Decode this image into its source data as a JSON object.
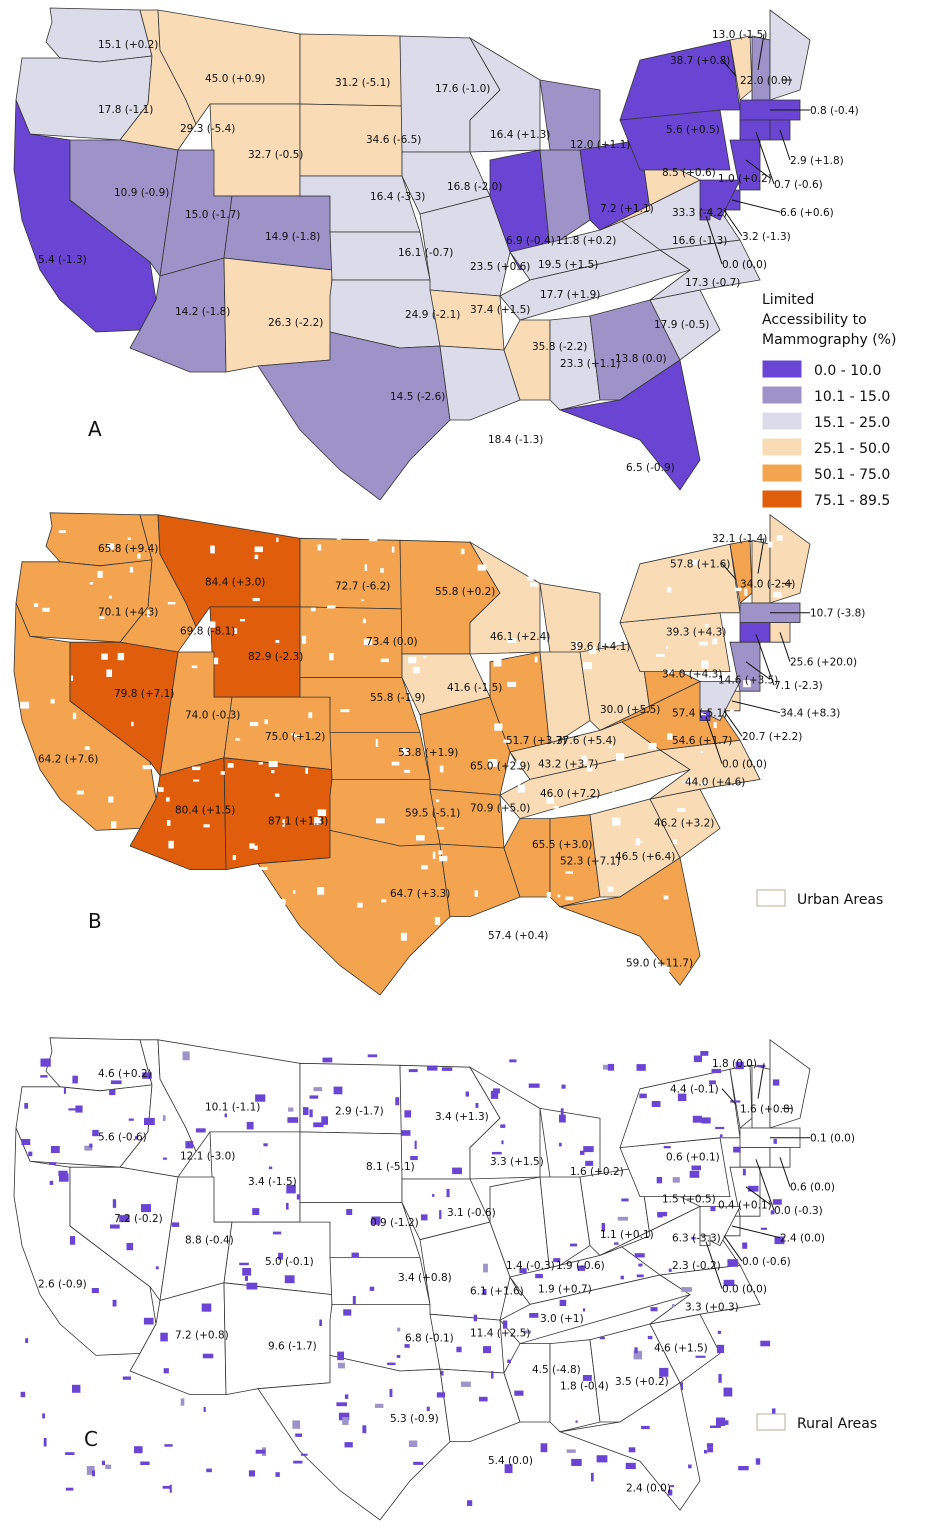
{
  "colors": {
    "c1": "#6a45d4",
    "c2": "#9d93c9",
    "c3": "#dcdbe9",
    "c4": "#f9dcb6",
    "c5": "#f4a44f",
    "c6": "#e05e0b",
    "urban_hole": "#ffffff",
    "rural_fill": "#ffffff",
    "rural_access": "#6a45d4",
    "rural_light": "#9d93c9"
  },
  "legend": {
    "title_lines": [
      "Limited",
      "Accessibility to",
      "Mammography (%)"
    ],
    "items": [
      {
        "label": "0.0 - 10.0",
        "color": "#6a45d4"
      },
      {
        "label": "10.1 - 15.0",
        "color": "#9d93c9"
      },
      {
        "label": "15.1 - 25.0",
        "color": "#dcdbe9"
      },
      {
        "label": "25.1 - 50.0",
        "color": "#f9dcb6"
      },
      {
        "label": "50.1 - 75.0",
        "color": "#f4a44f"
      },
      {
        "label": "75.1 - 89.5",
        "color": "#e05e0b"
      }
    ]
  },
  "panels": [
    {
      "letter": "A",
      "key_label": "",
      "labels": [
        {
          "state": "WA",
          "text": "15.1 (+0.2)"
        },
        {
          "state": "MT",
          "text": "45.0 (+0.9)"
        },
        {
          "state": "ND",
          "text": "31.2 (-5.1)"
        },
        {
          "state": "MN",
          "text": "17.6 (-1.0)"
        },
        {
          "state": "OR",
          "text": "17.8 (-1.1)"
        },
        {
          "state": "ID",
          "text": "29.3 (-5.4)"
        },
        {
          "state": "SD",
          "text": "34.6 (-6.5)"
        },
        {
          "state": "WY",
          "text": "32.7 (-0.5)"
        },
        {
          "state": "WI",
          "text": "16.4 (+1.3)"
        },
        {
          "state": "MI",
          "text": "12.0 (+1.1)"
        },
        {
          "state": "NV",
          "text": "10.9 (-0.9)"
        },
        {
          "state": "UT",
          "text": "15.0 (-1.7)"
        },
        {
          "state": "NE",
          "text": "16.4 (-3.3)"
        },
        {
          "state": "IA",
          "text": "16.8 (-2.0)"
        },
        {
          "state": "CO",
          "text": "14.9 (-1.8)"
        },
        {
          "state": "KS",
          "text": "16.1 (-0.7)"
        },
        {
          "state": "IL",
          "text": "6.9 (-0.4)"
        },
        {
          "state": "IN",
          "text": "11.8 (+0.2)"
        },
        {
          "state": "OH",
          "text": "7.2 (+1.1)"
        },
        {
          "state": "PA",
          "text": "8.5 (+0.6)"
        },
        {
          "state": "WV",
          "text": "33.3 (-4.2)"
        },
        {
          "state": "VA",
          "text": "16.6 (-1.3)"
        },
        {
          "state": "CA",
          "text": "5.4 (-1.3)"
        },
        {
          "state": "MO",
          "text": "23.5 (+0.6)"
        },
        {
          "state": "KY",
          "text": "19.5 (+1.5)"
        },
        {
          "state": "AZ",
          "text": "14.2 (-1.8)"
        },
        {
          "state": "NM",
          "text": "26.3 (-2.2)"
        },
        {
          "state": "OK",
          "text": "24.9 (-2.1)"
        },
        {
          "state": "AR",
          "text": "37.4 (+1.5)"
        },
        {
          "state": "TN",
          "text": "17.7 (+1.9)"
        },
        {
          "state": "NC",
          "text": "17.3 (-0.7)"
        },
        {
          "state": "MS",
          "text": "35.8 (-2.2)"
        },
        {
          "state": "AL",
          "text": "23.3 (+1.1)"
        },
        {
          "state": "GA",
          "text": "13.8 (0.0)"
        },
        {
          "state": "SC",
          "text": "17.9 (-0.5)"
        },
        {
          "state": "TX",
          "text": "14.5 (-2.6)"
        },
        {
          "state": "LA",
          "text": "18.4 (-1.3)"
        },
        {
          "state": "FL",
          "text": "6.5 (-0.9)"
        },
        {
          "state": "NY",
          "text": "5.6 (+0.5)"
        },
        {
          "state": "VT",
          "text": "38.7 (+0.8)"
        },
        {
          "state": "NH",
          "text": "13.0 (-1.5)"
        },
        {
          "state": "ME",
          "text": "22.0 (0.0)"
        },
        {
          "state": "MA",
          "text": "0.8 (-0.4)"
        },
        {
          "state": "RI",
          "text": "2.9 (+1.8)"
        },
        {
          "state": "CT",
          "text": "0.7 (-0.6)"
        },
        {
          "state": "NJ",
          "text": "1.0 (+0.2)"
        },
        {
          "state": "DE",
          "text": "6.6 (+0.6)"
        },
        {
          "state": "MD",
          "text": "3.2 (-1.3)"
        },
        {
          "state": "DC",
          "text": "0.0 (0.0)"
        }
      ]
    },
    {
      "letter": "B",
      "key_label": "Urban Areas",
      "labels": [
        {
          "state": "WA",
          "text": "65.8 (+9.4)"
        },
        {
          "state": "MT",
          "text": "84.4 (+3.0)"
        },
        {
          "state": "ND",
          "text": "72.7 (-6.2)"
        },
        {
          "state": "MN",
          "text": "55.8 (+0.2)"
        },
        {
          "state": "OR",
          "text": "70.1 (+4.3)"
        },
        {
          "state": "ID",
          "text": "69.8 (-8.1)"
        },
        {
          "state": "WY",
          "text": "82.9 (-2.3)"
        },
        {
          "state": "SD",
          "text": "73.4 (0.0)"
        },
        {
          "state": "WI",
          "text": "46.1 (+2.4)"
        },
        {
          "state": "MI",
          "text": "39.6 (+4.1)"
        },
        {
          "state": "NV",
          "text": "79.8 (+7.1)"
        },
        {
          "state": "UT",
          "text": "74.0 (-0.3)"
        },
        {
          "state": "NE",
          "text": "55.8 (-1.9)"
        },
        {
          "state": "IA",
          "text": "41.6 (-1.5)"
        },
        {
          "state": "IL",
          "text": "51.7 (+3.7)"
        },
        {
          "state": "IN",
          "text": "37.6 (+5.4)"
        },
        {
          "state": "OH",
          "text": "30.0 (+5.5)"
        },
        {
          "state": "PA",
          "text": "34.0 (+4.3)"
        },
        {
          "state": "CO",
          "text": "75.0 (+1.2)"
        },
        {
          "state": "KS",
          "text": "53.8 (+1.9)"
        },
        {
          "state": "MO",
          "text": "65.0 (+2.9)"
        },
        {
          "state": "KY",
          "text": "43.2 (+3.7)"
        },
        {
          "state": "WV",
          "text": "57.4 (-5.1)"
        },
        {
          "state": "VA",
          "text": "54.6 (+1.7)"
        },
        {
          "state": "CA",
          "text": "64.2 (+7.6)"
        },
        {
          "state": "TN",
          "text": "46.0 (+7.2)"
        },
        {
          "state": "NC",
          "text": "44.0 (+4.6)"
        },
        {
          "state": "AZ",
          "text": "80.4 (+1.5)"
        },
        {
          "state": "NM",
          "text": "87.1 (+1.3)"
        },
        {
          "state": "OK",
          "text": "59.5 (-5.1)"
        },
        {
          "state": "AR",
          "text": "70.9 (+5.0)"
        },
        {
          "state": "MS",
          "text": "65.5 (+3.0)"
        },
        {
          "state": "AL",
          "text": "52.3 (+7.1)"
        },
        {
          "state": "GA",
          "text": "46.5 (+6.4)"
        },
        {
          "state": "SC",
          "text": "46.2 (+3.2)"
        },
        {
          "state": "TX",
          "text": "64.7 (+3.3)"
        },
        {
          "state": "LA",
          "text": "57.4 (+0.4)"
        },
        {
          "state": "FL",
          "text": "59.0 (+11.7)"
        },
        {
          "state": "NY",
          "text": "39.3 (+4.3)"
        },
        {
          "state": "VT",
          "text": "57.8 (+1.6)"
        },
        {
          "state": "NH",
          "text": "32.1 (-1.4)"
        },
        {
          "state": "ME",
          "text": "34.0 (-2.4)"
        },
        {
          "state": "MA",
          "text": "10.7 (-3.8)"
        },
        {
          "state": "RI",
          "text": "25.6 (+20.0)"
        },
        {
          "state": "CT",
          "text": "7.1 (-2.3)"
        },
        {
          "state": "NJ",
          "text": "14.6 (+3.5)"
        },
        {
          "state": "DE",
          "text": "34.4 (+8.3)"
        },
        {
          "state": "MD",
          "text": "20.7 (+2.2)"
        },
        {
          "state": "DC",
          "text": "0.0 (0.0)"
        }
      ]
    },
    {
      "letter": "C",
      "key_label": "Rural Areas",
      "labels": [
        {
          "state": "WA",
          "text": "4.6 (+0.2)"
        },
        {
          "state": "MT",
          "text": "10.1 (-1.1)"
        },
        {
          "state": "ND",
          "text": "2.9 (-1.7)"
        },
        {
          "state": "MN",
          "text": "3.4 (+1.3)"
        },
        {
          "state": "OR",
          "text": "5.6 (-0.6)"
        },
        {
          "state": "ID",
          "text": "12.1 (-3.0)"
        },
        {
          "state": "WY",
          "text": "3.4 (-1.5)"
        },
        {
          "state": "SD",
          "text": "8.1 (-5.1)"
        },
        {
          "state": "WI",
          "text": "3.3 (+1.5)"
        },
        {
          "state": "MI",
          "text": "1.6 (+0.2)"
        },
        {
          "state": "NV",
          "text": "7.2 (-0.2)"
        },
        {
          "state": "UT",
          "text": "8.8 (-0.4)"
        },
        {
          "state": "NE",
          "text": "0.9 (-1.2)"
        },
        {
          "state": "IA",
          "text": "3.1 (-0.6)"
        },
        {
          "state": "IL",
          "text": "1.4 (-0.3)"
        },
        {
          "state": "IN",
          "text": "1.9 (-0.6)"
        },
        {
          "state": "OH",
          "text": "1.1 (+0.1)"
        },
        {
          "state": "PA",
          "text": "1.5 (+0.5)"
        },
        {
          "state": "CO",
          "text": "5.0 (-0.1)"
        },
        {
          "state": "KS",
          "text": "3.4 (+0.8)"
        },
        {
          "state": "MO",
          "text": "6.1 (+1.6)"
        },
        {
          "state": "KY",
          "text": "1.9 (+0.7)"
        },
        {
          "state": "WV",
          "text": "6.3 (-3.3)"
        },
        {
          "state": "VA",
          "text": "2.3 (-0.2)"
        },
        {
          "state": "CA",
          "text": "2.6 (-0.9)"
        },
        {
          "state": "TN",
          "text": "3.0 (+1)"
        },
        {
          "state": "NC",
          "text": "3.3 (+0.3)"
        },
        {
          "state": "AZ",
          "text": "7.2 (+0.8)"
        },
        {
          "state": "NM",
          "text": "9.6 (-1.7)"
        },
        {
          "state": "OK",
          "text": "6.8 (-0.1)"
        },
        {
          "state": "AR",
          "text": "11.4 (+2.5)"
        },
        {
          "state": "MS",
          "text": "4.5 (-4.8)"
        },
        {
          "state": "AL",
          "text": "1.8 (-0.4)"
        },
        {
          "state": "GA",
          "text": "3.5 (+0.2)"
        },
        {
          "state": "SC",
          "text": "4.6 (+1.5)"
        },
        {
          "state": "TX",
          "text": "5.3 (-0.9)"
        },
        {
          "state": "LA",
          "text": "5.4 (0.0)"
        },
        {
          "state": "FL",
          "text": "2.4 (0.0)"
        },
        {
          "state": "NY",
          "text": "0.6 (+0.1)"
        },
        {
          "state": "VT",
          "text": "4.4 (-0.1)"
        },
        {
          "state": "NH",
          "text": "1.8 (0.0)"
        },
        {
          "state": "ME",
          "text": "1.6 (+0.8)"
        },
        {
          "state": "MA",
          "text": "0.1 (0.0)"
        },
        {
          "state": "RI",
          "text": "0.6 (0.0)"
        },
        {
          "state": "CT",
          "text": "0.0 (-0.3)"
        },
        {
          "state": "NJ",
          "text": "0.4 (+0.1)"
        },
        {
          "state": "DE",
          "text": "2.4 (0.0)"
        },
        {
          "state": "MD",
          "text": "0.0 (-0.6)"
        },
        {
          "state": "DC",
          "text": "0.0 (0.0)"
        }
      ]
    }
  ]
}
